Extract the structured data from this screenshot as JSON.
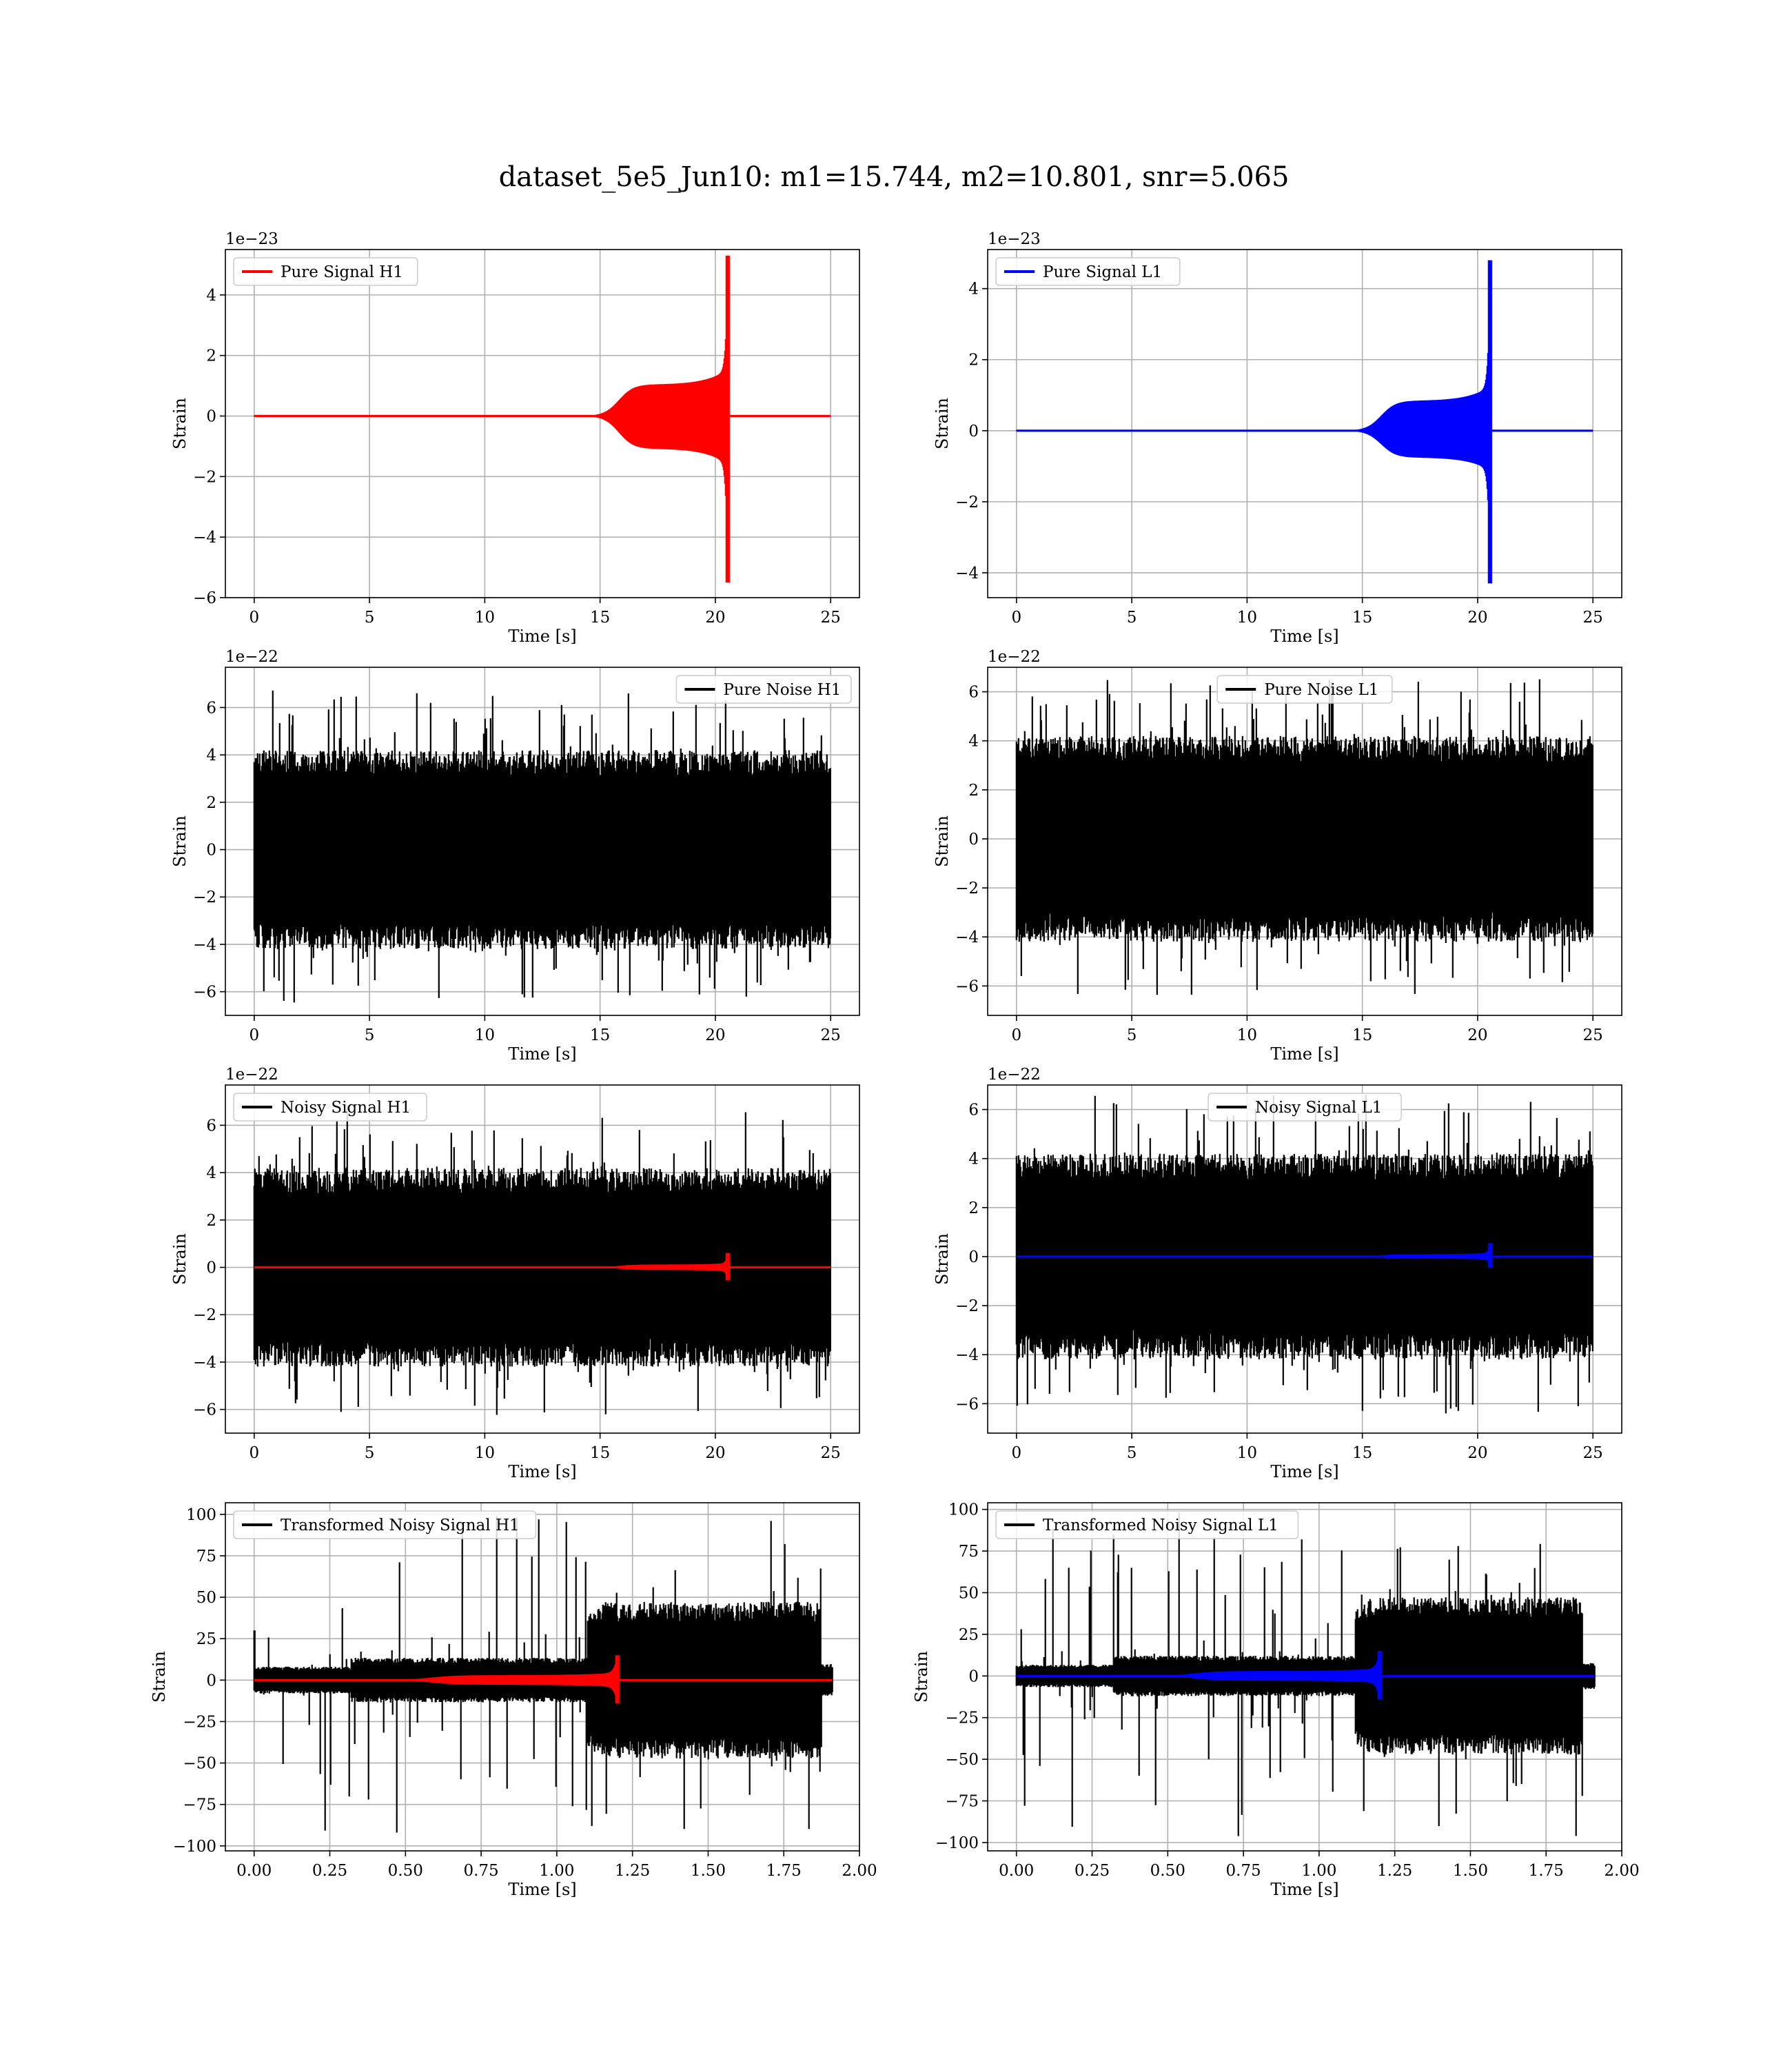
{
  "title": "dataset_5e5_Jun10: m1=15.744, m2=10.801, snr=5.065",
  "colors": {
    "red": "#ff0000",
    "blue": "#0000ff",
    "black": "#000000",
    "grid": "#b0b0b0"
  },
  "chart_data": [
    {
      "id": "pure-signal-h1",
      "type": "line",
      "kind": "chirp",
      "xlabel": "Time [s]",
      "ylabel": "Strain",
      "offset_text": "1e−23",
      "xlim": [
        -1.25,
        26.25
      ],
      "ylim": [
        -6.0,
        5.5
      ],
      "xticks": [
        0,
        5,
        10,
        15,
        20,
        25
      ],
      "xtick_labels": [
        "0",
        "5",
        "10",
        "15",
        "20",
        "25"
      ],
      "yticks": [
        -6,
        -4,
        -2,
        0,
        2,
        4
      ],
      "ytick_labels": [
        "−6",
        "−4",
        "−2",
        "0",
        "2",
        "4"
      ],
      "legend": {
        "label": "Pure Signal H1",
        "color": "#ff0000",
        "position": "upper-left"
      },
      "series": [
        {
          "name": "Pure Signal H1",
          "color": "#ff0000",
          "x_start": 0,
          "x_end": 25,
          "chirp_start": 14.8,
          "plateau": 1.05,
          "merger_time": 20.55,
          "peak_max": 5.3,
          "peak_min": -5.5
        }
      ]
    },
    {
      "id": "pure-signal-l1",
      "type": "line",
      "kind": "chirp",
      "xlabel": "Time [s]",
      "ylabel": "Strain",
      "offset_text": "1e−23",
      "xlim": [
        -1.25,
        26.25
      ],
      "ylim": [
        -4.7,
        5.1
      ],
      "xticks": [
        0,
        5,
        10,
        15,
        20,
        25
      ],
      "xtick_labels": [
        "0",
        "5",
        "10",
        "15",
        "20",
        "25"
      ],
      "yticks": [
        -4,
        -2,
        0,
        2,
        4
      ],
      "ytick_labels": [
        "−4",
        "−2",
        "0",
        "2",
        "4"
      ],
      "legend": {
        "label": "Pure Signal L1",
        "color": "#0000ff",
        "position": "upper-left"
      },
      "series": [
        {
          "name": "Pure Signal L1",
          "color": "#0000ff",
          "x_start": 0,
          "x_end": 25,
          "chirp_start": 14.8,
          "plateau": 0.85,
          "merger_time": 20.55,
          "peak_max": 4.8,
          "peak_min": -4.3
        }
      ]
    },
    {
      "id": "pure-noise-h1",
      "type": "line",
      "kind": "noise",
      "xlabel": "Time [s]",
      "ylabel": "Strain",
      "offset_text": "1e−22",
      "xlim": [
        -1.25,
        26.25
      ],
      "ylim": [
        -7.0,
        7.7
      ],
      "xticks": [
        0,
        5,
        10,
        15,
        20,
        25
      ],
      "xtick_labels": [
        "0",
        "5",
        "10",
        "15",
        "20",
        "25"
      ],
      "yticks": [
        -6,
        -4,
        -2,
        0,
        2,
        4,
        6
      ],
      "ytick_labels": [
        "−6",
        "−4",
        "−2",
        "0",
        "2",
        "4",
        "6"
      ],
      "legend": {
        "label": "Pure Noise H1",
        "color": "#000000",
        "position": "upper-right"
      },
      "series": [
        {
          "name": "Pure Noise H1",
          "color": "#000000",
          "x_start": 0,
          "x_end": 25,
          "band": 3.0,
          "max": 6.8,
          "min": -6.5
        }
      ]
    },
    {
      "id": "pure-noise-l1",
      "type": "line",
      "kind": "noise",
      "xlabel": "Time [s]",
      "ylabel": "Strain",
      "offset_text": "1e−22",
      "xlim": [
        -1.25,
        26.25
      ],
      "ylim": [
        -7.2,
        7.0
      ],
      "xticks": [
        0,
        5,
        10,
        15,
        20,
        25
      ],
      "xtick_labels": [
        "0",
        "5",
        "10",
        "15",
        "20",
        "25"
      ],
      "yticks": [
        -6,
        -4,
        -2,
        0,
        2,
        4,
        6
      ],
      "ytick_labels": [
        "−6",
        "−4",
        "−2",
        "0",
        "2",
        "4",
        "6"
      ],
      "legend": {
        "label": "Pure Noise L1",
        "color": "#000000",
        "position": "upper-center"
      },
      "series": [
        {
          "name": "Pure Noise L1",
          "color": "#000000",
          "x_start": 0,
          "x_end": 25,
          "band": 3.0,
          "max": 6.6,
          "min": -6.4
        }
      ]
    },
    {
      "id": "noisy-signal-h1",
      "type": "line",
      "kind": "noisy",
      "xlabel": "Time [s]",
      "ylabel": "Strain",
      "offset_text": "1e−22",
      "xlim": [
        -1.25,
        26.25
      ],
      "ylim": [
        -7.0,
        7.7
      ],
      "xticks": [
        0,
        5,
        10,
        15,
        20,
        25
      ],
      "xtick_labels": [
        "0",
        "5",
        "10",
        "15",
        "20",
        "25"
      ],
      "yticks": [
        -6,
        -4,
        -2,
        0,
        2,
        4,
        6
      ],
      "ytick_labels": [
        "−6",
        "−4",
        "−2",
        "0",
        "2",
        "4",
        "6"
      ],
      "legend": {
        "label": "Noisy Signal H1",
        "color": "#000000",
        "position": "upper-left"
      },
      "series": [
        {
          "name": "Noisy Signal H1",
          "color": "#000000",
          "x_start": 0,
          "x_end": 25,
          "band": 3.0,
          "max": 7.0,
          "min": -6.3
        },
        {
          "color": "#ff0000",
          "x_start": 0,
          "x_end": 25,
          "chirp_start": 14.8,
          "plateau": 0.12,
          "merger_time": 20.55,
          "peak_max": 0.6,
          "peak_min": -0.55
        }
      ]
    },
    {
      "id": "noisy-signal-l1",
      "type": "line",
      "kind": "noisy",
      "xlabel": "Time [s]",
      "ylabel": "Strain",
      "offset_text": "1e−22",
      "xlim": [
        -1.25,
        26.25
      ],
      "ylim": [
        -7.2,
        7.0
      ],
      "xticks": [
        0,
        5,
        10,
        15,
        20,
        25
      ],
      "xtick_labels": [
        "0",
        "5",
        "10",
        "15",
        "20",
        "25"
      ],
      "yticks": [
        -6,
        -4,
        -2,
        0,
        2,
        4,
        6
      ],
      "ytick_labels": [
        "−6",
        "−4",
        "−2",
        "0",
        "2",
        "4",
        "6"
      ],
      "legend": {
        "label": "Noisy Signal L1",
        "color": "#000000",
        "position": "upper-center"
      },
      "series": [
        {
          "name": "Noisy Signal L1",
          "color": "#000000",
          "x_start": 0,
          "x_end": 25,
          "band": 3.0,
          "max": 6.6,
          "min": -6.4
        },
        {
          "color": "#0000ff",
          "x_start": 0,
          "x_end": 25,
          "chirp_start": 14.8,
          "plateau": 0.1,
          "merger_time": 20.55,
          "peak_max": 0.55,
          "peak_min": -0.45
        }
      ]
    },
    {
      "id": "transformed-noisy-signal-h1",
      "type": "line",
      "kind": "whitened",
      "xlabel": "Time [s]",
      "ylabel": "Strain",
      "offset_text": "",
      "xlim": [
        -0.095,
        2.0
      ],
      "ylim": [
        -103,
        107
      ],
      "xticks": [
        0.0,
        0.25,
        0.5,
        0.75,
        1.0,
        1.25,
        1.5,
        1.75,
        2.0
      ],
      "xtick_labels": [
        "0.00",
        "0.25",
        "0.50",
        "0.75",
        "1.00",
        "1.25",
        "1.50",
        "1.75",
        "2.00"
      ],
      "yticks": [
        -100,
        -75,
        -50,
        -25,
        0,
        25,
        50,
        75,
        100
      ],
      "ytick_labels": [
        "−100",
        "−75",
        "−50",
        "−25",
        "0",
        "25",
        "50",
        "75",
        "100"
      ],
      "legend": {
        "label": "Transformed Noisy Signal H1",
        "color": "#000000",
        "position": "upper-left"
      },
      "series": [
        {
          "name": "Transformed Noisy Signal H1",
          "color": "#000000",
          "x_start": 0,
          "x_end": 1.91,
          "low_band": 6,
          "mid_band": 10,
          "high_band": 35,
          "mid_start": 0.32,
          "high_start": 1.1,
          "high_end": 1.87,
          "max": 100,
          "min": -92,
          "start_spike": 30
        },
        {
          "color": "#ff0000",
          "x_start": 0,
          "x_end": 1.91,
          "chirp_start": 0.45,
          "plateau": 3,
          "merger_time": 1.2,
          "peak_max": 15,
          "peak_min": -14
        }
      ]
    },
    {
      "id": "transformed-noisy-signal-l1",
      "type": "line",
      "kind": "whitened",
      "xlabel": "Time [s]",
      "ylabel": "Strain",
      "offset_text": "",
      "xlim": [
        -0.095,
        2.0
      ],
      "ylim": [
        -105,
        104
      ],
      "xticks": [
        0.0,
        0.25,
        0.5,
        0.75,
        1.0,
        1.25,
        1.5,
        1.75,
        2.0
      ],
      "xtick_labels": [
        "0.00",
        "0.25",
        "0.50",
        "0.75",
        "1.00",
        "1.25",
        "1.50",
        "1.75",
        "2.00"
      ],
      "yticks": [
        -100,
        -75,
        -50,
        -25,
        0,
        25,
        50,
        75,
        100
      ],
      "ytick_labels": [
        "−100",
        "−75",
        "−50",
        "−25",
        "0",
        "25",
        "50",
        "75",
        "100"
      ],
      "legend": {
        "label": "Transformed Noisy Signal L1",
        "color": "#000000",
        "position": "upper-left"
      },
      "series": [
        {
          "name": "Transformed Noisy Signal L1",
          "color": "#000000",
          "x_start": 0,
          "x_end": 1.91,
          "low_band": 5,
          "mid_band": 9,
          "high_band": 35,
          "mid_start": 0.32,
          "high_start": 1.12,
          "high_end": 1.87,
          "max": 98,
          "min": -98,
          "start_spike": 6
        },
        {
          "color": "#0000ff",
          "x_start": 0,
          "x_end": 1.91,
          "chirp_start": 0.45,
          "plateau": 3,
          "merger_time": 1.2,
          "peak_max": 15,
          "peak_min": -14
        }
      ]
    }
  ]
}
